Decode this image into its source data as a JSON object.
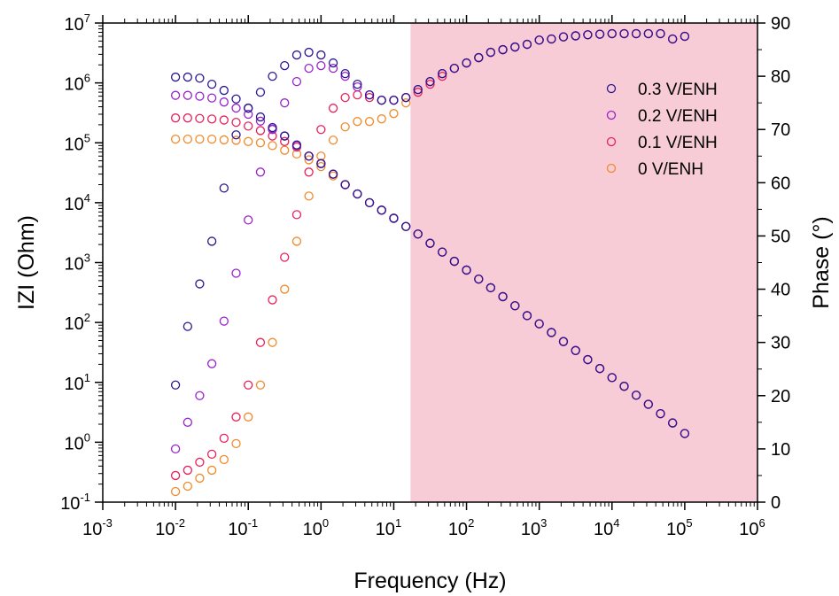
{
  "chart_data": {
    "type": "scatter",
    "xlabel": "Frequency (Hz)",
    "ylabel": "IZI (Ohm)",
    "y2label": "Phase (°)",
    "x_scale": "log",
    "y_scale": "log",
    "xlim": [
      0.001,
      1000000
    ],
    "ylim": [
      0.1,
      10000000
    ],
    "y2lim": [
      0,
      90
    ],
    "x_ticks": [
      {
        "base": "10",
        "exp": "-3"
      },
      {
        "base": "10",
        "exp": "-2"
      },
      {
        "base": "10",
        "exp": "-1"
      },
      {
        "base": "10",
        "exp": "0"
      },
      {
        "base": "10",
        "exp": "1"
      },
      {
        "base": "10",
        "exp": "2"
      },
      {
        "base": "10",
        "exp": "3"
      },
      {
        "base": "10",
        "exp": "4"
      },
      {
        "base": "10",
        "exp": "5"
      },
      {
        "base": "10",
        "exp": "6"
      }
    ],
    "y_ticks": [
      {
        "base": "10",
        "exp": "-1"
      },
      {
        "base": "10",
        "exp": "0"
      },
      {
        "base": "10",
        "exp": "1"
      },
      {
        "base": "10",
        "exp": "2"
      },
      {
        "base": "10",
        "exp": "3"
      },
      {
        "base": "10",
        "exp": "4"
      },
      {
        "base": "10",
        "exp": "5"
      },
      {
        "base": "10",
        "exp": "6"
      },
      {
        "base": "10",
        "exp": "7"
      }
    ],
    "y2_ticks": [
      "0",
      "10",
      "20",
      "30",
      "40",
      "50",
      "60",
      "70",
      "80",
      "90"
    ],
    "shaded_region": {
      "x_from": 17,
      "x_to": 1000000,
      "color": "#f7ccd6"
    },
    "legend_position": "upper-right",
    "frequencies": [
      0.01,
      0.0147,
      0.0215,
      0.0316,
      0.0464,
      0.0681,
      0.1,
      0.147,
      0.215,
      0.316,
      0.464,
      0.681,
      1,
      1.47,
      2.15,
      3.16,
      4.64,
      6.81,
      10,
      14.7,
      21.5,
      31.6,
      46.4,
      68.1,
      100,
      147,
      215,
      316,
      464,
      681,
      1000,
      1470,
      2150,
      3160,
      4640,
      6810,
      10000,
      14700,
      21500,
      31600,
      46400,
      68100,
      100000
    ],
    "series": [
      {
        "name": "0.3 V/ENH",
        "color": "#2a1790",
        "modulus": [
          1250000,
          1250000,
          1200000,
          950000,
          750000,
          540000,
          380000,
          270000,
          180000,
          130000,
          92000,
          60000,
          45000,
          30000,
          20000,
          14000,
          10000,
          7500,
          5500,
          4000,
          3000,
          2100,
          1500,
          1050,
          750,
          530,
          380,
          270,
          190,
          130,
          95,
          68,
          48,
          34,
          24,
          17,
          12,
          8.6,
          6.1,
          4.3,
          3.0,
          2.1,
          1.4
        ],
        "phase": [
          22,
          33,
          41,
          49,
          59,
          69,
          74,
          77,
          80,
          82,
          84,
          84.5,
          84,
          82.5,
          80.5,
          78.5,
          76.5,
          75.5,
          75.5,
          76,
          77.5,
          79,
          80.5,
          81.5,
          82.5,
          83.5,
          84.5,
          85,
          85.5,
          86,
          86.8,
          87,
          87.4,
          87.6,
          87.8,
          87.9,
          88,
          88,
          88,
          88,
          88,
          87,
          87.5
        ]
      },
      {
        "name": "0.2 V/ENH",
        "color": "#9922cc",
        "modulus": [
          620000,
          620000,
          600000,
          560000,
          480000,
          380000,
          300000,
          230000,
          170000,
          130000,
          90000,
          60000,
          45000,
          30000,
          20000,
          14000,
          10000,
          7500,
          5500,
          4000,
          3000,
          2100,
          1500,
          1050,
          750,
          530,
          380,
          270,
          190,
          130,
          95,
          68,
          48,
          34,
          24,
          17,
          12,
          8.6,
          6.1,
          4.3,
          3.0,
          2.1,
          1.4
        ],
        "phase": [
          10,
          15,
          20,
          26,
          34,
          43,
          53,
          62,
          70,
          75,
          79,
          81.5,
          82,
          81.5,
          80,
          78,
          76.5,
          75.5,
          75.5,
          76,
          77.5,
          79,
          80.5,
          81.5,
          82.5,
          83.5,
          84.5,
          85,
          85.5,
          86,
          86.8,
          87,
          87.4,
          87.6,
          87.8,
          87.9,
          88,
          88,
          88,
          88,
          88,
          87,
          87.5
        ]
      },
      {
        "name": "0.1 V/ENH",
        "color": "#e8205a",
        "modulus": [
          260000,
          260000,
          255000,
          250000,
          240000,
          220000,
          190000,
          160000,
          130000,
          105000,
          85000,
          60000,
          45000,
          30000,
          20000,
          14000,
          10000,
          7500,
          5500,
          4000,
          3000,
          2100,
          1500,
          1050,
          750,
          530,
          380,
          270,
          190,
          130,
          95,
          68,
          48,
          34,
          24,
          17,
          12,
          8.6,
          6.1,
          4.3,
          3.0,
          2.1,
          1.4
        ],
        "phase": [
          5,
          6,
          7.5,
          9,
          12,
          16,
          22,
          30,
          38,
          46,
          54,
          62,
          70,
          74,
          76,
          76.5,
          76,
          75.5,
          75.5,
          76,
          77,
          78.5,
          80,
          81.5,
          82.5,
          83.5,
          84.5,
          85,
          85.5,
          86,
          86.8,
          87,
          87.4,
          87.6,
          87.8,
          87.9,
          88,
          88,
          88,
          88,
          88,
          87,
          87.5
        ]
      },
      {
        "name": "0 V/ENH",
        "color": "#f08a2a",
        "modulus": [
          115000,
          115000,
          115000,
          115000,
          112000,
          110000,
          105000,
          100000,
          90000,
          75000,
          65000,
          52000,
          40000,
          28000,
          20000,
          14000,
          10000,
          7500,
          5500,
          4000,
          3000,
          2100,
          1500,
          1050,
          750,
          530,
          380,
          270,
          190,
          130,
          95,
          68,
          48,
          34,
          24,
          17,
          12,
          8.6,
          6.1,
          4.3,
          3.0,
          2.1,
          1.4
        ],
        "phase": [
          2,
          3,
          4.5,
          6,
          8,
          11,
          16,
          22,
          30,
          40,
          49,
          57.5,
          65,
          68,
          70.5,
          71.5,
          71.5,
          72,
          73,
          75,
          77,
          79,
          80.5,
          81.5,
          82.5,
          83.5,
          84.5,
          85,
          85.5,
          86,
          86.8,
          87,
          87.4,
          87.6,
          87.8,
          87.9,
          88,
          88,
          88,
          88,
          88,
          87,
          87.5
        ]
      }
    ]
  }
}
